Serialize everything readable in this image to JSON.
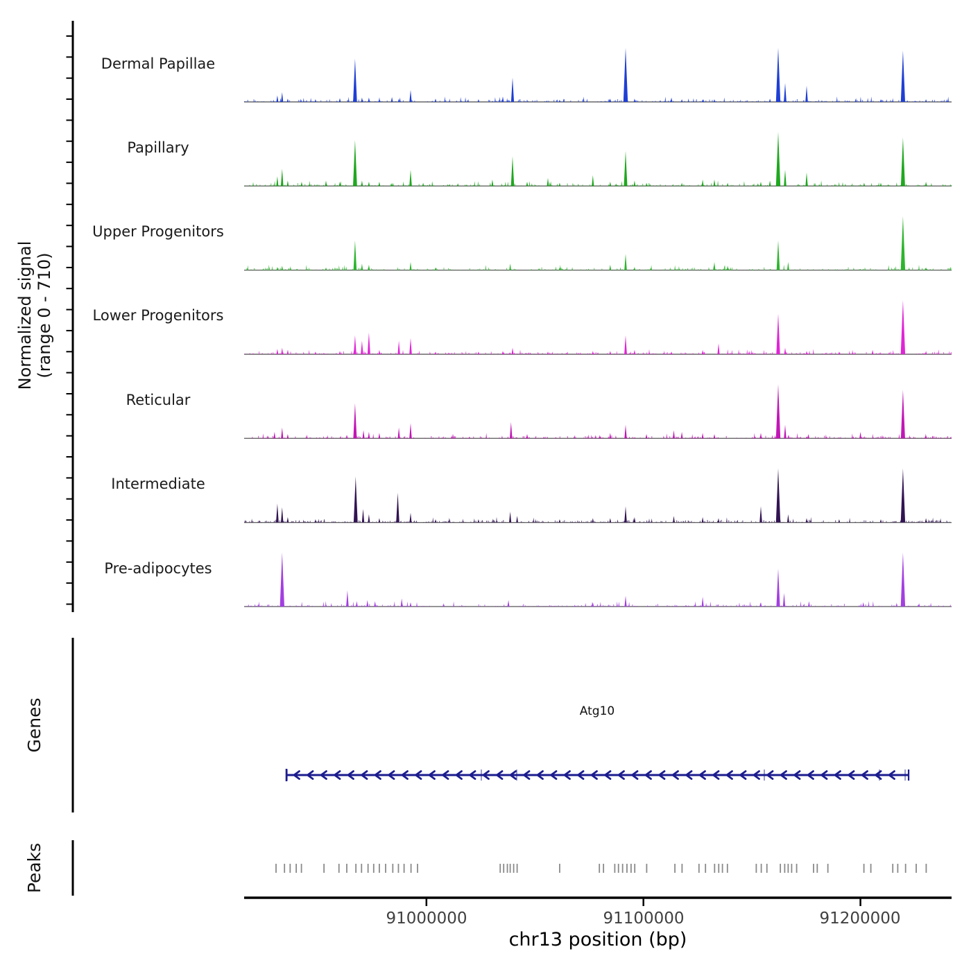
{
  "figure": {
    "background": "#ffffff",
    "y_axis": {
      "label_line1": "Normalized signal",
      "label_line2": "(range 0 - 710)",
      "range_min": 0,
      "range_max": 710
    },
    "x_axis": {
      "title": "chr13 position (bp)",
      "bp_min": 90916000,
      "bp_max": 91242000,
      "ticks": [
        {
          "bp": 91000000,
          "label": "91000000"
        },
        {
          "bp": 91100000,
          "label": "91100000"
        },
        {
          "bp": 91200000,
          "label": "91200000"
        }
      ]
    },
    "sections": {
      "genes_label": "Genes",
      "peaks_label": "Peaks"
    }
  },
  "chart_data": {
    "type": "area",
    "description": "Genome browser signal tracks over chr13, peaks as [position_bp, relative_height 0-1]",
    "signal_max": 710,
    "tracks": [
      {
        "name": "Dermal Papillae",
        "color": "#1f3fd4",
        "peaks": [
          [
            90931300,
            0.12
          ],
          [
            90933500,
            0.18
          ],
          [
            90936100,
            0.06
          ],
          [
            90948900,
            0.05
          ],
          [
            90960100,
            0.07
          ],
          [
            90967100,
            0.8
          ],
          [
            90970300,
            0.08
          ],
          [
            90973500,
            0.08
          ],
          [
            90978300,
            0.06
          ],
          [
            90984100,
            0.09
          ],
          [
            90987300,
            0.06
          ],
          [
            90992700,
            0.22
          ],
          [
            91004200,
            0.06
          ],
          [
            91024000,
            0.05
          ],
          [
            91035200,
            0.1
          ],
          [
            91039700,
            0.45
          ],
          [
            91061400,
            0.04
          ],
          [
            91084700,
            0.06
          ],
          [
            91091800,
            1.0
          ],
          [
            91095900,
            0.06
          ],
          [
            91112900,
            0.08
          ],
          [
            91117700,
            0.05
          ],
          [
            91127300,
            0.05
          ],
          [
            91132700,
            0.05
          ],
          [
            91158300,
            0.06
          ],
          [
            91162100,
            1.0
          ],
          [
            91165300,
            0.35
          ],
          [
            91175200,
            0.3
          ],
          [
            91209400,
            0.05
          ],
          [
            91219600,
            0.95
          ],
          [
            91230200,
            0.05
          ]
        ]
      },
      {
        "name": "Papillary",
        "color": "#1fa81f",
        "peaks": [
          [
            90931300,
            0.18
          ],
          [
            90933500,
            0.32
          ],
          [
            90936100,
            0.1
          ],
          [
            90942500,
            0.08
          ],
          [
            90953700,
            0.1
          ],
          [
            90960100,
            0.08
          ],
          [
            90967100,
            0.85
          ],
          [
            90970300,
            0.1
          ],
          [
            90973500,
            0.08
          ],
          [
            90978300,
            0.08
          ],
          [
            90984100,
            0.06
          ],
          [
            90992700,
            0.3
          ],
          [
            90998500,
            0.06
          ],
          [
            91014500,
            0.05
          ],
          [
            91030400,
            0.12
          ],
          [
            91039700,
            0.55
          ],
          [
            91046400,
            0.08
          ],
          [
            91056000,
            0.15
          ],
          [
            91061400,
            0.06
          ],
          [
            91076700,
            0.2
          ],
          [
            91084700,
            0.08
          ],
          [
            91091800,
            0.65
          ],
          [
            91095900,
            0.1
          ],
          [
            91101400,
            0.06
          ],
          [
            91117700,
            0.06
          ],
          [
            91127300,
            0.12
          ],
          [
            91132700,
            0.12
          ],
          [
            91138800,
            0.06
          ],
          [
            91154100,
            0.08
          ],
          [
            91158300,
            0.1
          ],
          [
            91162100,
            1.0
          ],
          [
            91165300,
            0.3
          ],
          [
            91175200,
            0.25
          ],
          [
            91201700,
            0.06
          ],
          [
            91209400,
            0.06
          ],
          [
            91219600,
            0.9
          ],
          [
            91230200,
            0.08
          ]
        ]
      },
      {
        "name": "Upper Progenitors",
        "color": "#2db52d",
        "peaks": [
          [
            90931300,
            0.06
          ],
          [
            90933500,
            0.08
          ],
          [
            90953700,
            0.05
          ],
          [
            90967100,
            0.55
          ],
          [
            90970300,
            0.12
          ],
          [
            90973500,
            0.1
          ],
          [
            90992700,
            0.15
          ],
          [
            91004200,
            0.05
          ],
          [
            91038600,
            0.12
          ],
          [
            91061400,
            0.05
          ],
          [
            91084700,
            0.1
          ],
          [
            91091800,
            0.3
          ],
          [
            91095900,
            0.06
          ],
          [
            91132700,
            0.15
          ],
          [
            91138800,
            0.08
          ],
          [
            91162100,
            0.55
          ],
          [
            91166700,
            0.15
          ],
          [
            91219600,
            1.0
          ],
          [
            91230200,
            0.05
          ]
        ]
      },
      {
        "name": "Lower Progenitors",
        "color": "#e024d6",
        "peaks": [
          [
            90931300,
            0.1
          ],
          [
            90933500,
            0.12
          ],
          [
            90936100,
            0.08
          ],
          [
            90948900,
            0.05
          ],
          [
            90960100,
            0.06
          ],
          [
            90967100,
            0.35
          ],
          [
            90970300,
            0.25
          ],
          [
            90973500,
            0.4
          ],
          [
            90978300,
            0.08
          ],
          [
            90987300,
            0.25
          ],
          [
            90992700,
            0.3
          ],
          [
            91004200,
            0.05
          ],
          [
            91024000,
            0.05
          ],
          [
            91035200,
            0.06
          ],
          [
            91039700,
            0.12
          ],
          [
            91056000,
            0.05
          ],
          [
            91076700,
            0.06
          ],
          [
            91084700,
            0.06
          ],
          [
            91091800,
            0.35
          ],
          [
            91095900,
            0.08
          ],
          [
            91112900,
            0.05
          ],
          [
            91127300,
            0.08
          ],
          [
            91134600,
            0.2
          ],
          [
            91148700,
            0.06
          ],
          [
            91162100,
            0.75
          ],
          [
            91165300,
            0.12
          ],
          [
            91175200,
            0.06
          ],
          [
            91190200,
            0.05
          ],
          [
            91205600,
            0.08
          ],
          [
            91219600,
            1.0
          ],
          [
            91230200,
            0.06
          ]
        ]
      },
      {
        "name": "Reticular",
        "color": "#c216b6",
        "peaks": [
          [
            90930000,
            0.12
          ],
          [
            90933500,
            0.2
          ],
          [
            90936100,
            0.08
          ],
          [
            90967100,
            0.65
          ],
          [
            90971000,
            0.15
          ],
          [
            90973500,
            0.12
          ],
          [
            90978300,
            0.1
          ],
          [
            90987300,
            0.2
          ],
          [
            90992700,
            0.28
          ],
          [
            91039000,
            0.3
          ],
          [
            91046400,
            0.08
          ],
          [
            91079900,
            0.06
          ],
          [
            91084700,
            0.1
          ],
          [
            91091800,
            0.25
          ],
          [
            91101400,
            0.08
          ],
          [
            91114000,
            0.15
          ],
          [
            91117700,
            0.12
          ],
          [
            91127300,
            0.1
          ],
          [
            91132700,
            0.08
          ],
          [
            91154100,
            0.1
          ],
          [
            91162100,
            1.0
          ],
          [
            91165300,
            0.25
          ],
          [
            91176000,
            0.08
          ],
          [
            91200000,
            0.12
          ],
          [
            91219600,
            0.9
          ],
          [
            91230200,
            0.06
          ]
        ]
      },
      {
        "name": "Intermediate",
        "color": "#321452",
        "peaks": [
          [
            90931300,
            0.35
          ],
          [
            90933500,
            0.28
          ],
          [
            90936100,
            0.1
          ],
          [
            90948900,
            0.06
          ],
          [
            90967400,
            0.85
          ],
          [
            90970800,
            0.25
          ],
          [
            90973500,
            0.15
          ],
          [
            90978300,
            0.08
          ],
          [
            90986800,
            0.55
          ],
          [
            90992700,
            0.18
          ],
          [
            91004200,
            0.06
          ],
          [
            91024000,
            0.06
          ],
          [
            91038600,
            0.2
          ],
          [
            91041800,
            0.12
          ],
          [
            91061400,
            0.06
          ],
          [
            91076700,
            0.08
          ],
          [
            91084700,
            0.08
          ],
          [
            91091800,
            0.3
          ],
          [
            91095900,
            0.1
          ],
          [
            91114000,
            0.12
          ],
          [
            91127300,
            0.1
          ],
          [
            91134600,
            0.08
          ],
          [
            91154100,
            0.3
          ],
          [
            91162100,
            1.0
          ],
          [
            91166700,
            0.15
          ],
          [
            91175200,
            0.08
          ],
          [
            91190200,
            0.06
          ],
          [
            91209400,
            0.06
          ],
          [
            91219600,
            1.0
          ],
          [
            91230200,
            0.08
          ]
        ]
      },
      {
        "name": "Pre-adipocytes",
        "color": "#a33fe1",
        "peaks": [
          [
            90933500,
            1.0
          ],
          [
            90963600,
            0.3
          ],
          [
            90967900,
            0.1
          ],
          [
            90972800,
            0.12
          ],
          [
            90976300,
            0.1
          ],
          [
            90988600,
            0.15
          ],
          [
            90992700,
            0.08
          ],
          [
            91037800,
            0.12
          ],
          [
            91076700,
            0.08
          ],
          [
            91091800,
            0.2
          ],
          [
            91127300,
            0.18
          ],
          [
            91154100,
            0.08
          ],
          [
            91162100,
            0.7
          ],
          [
            91164800,
            0.25
          ],
          [
            91176300,
            0.1
          ],
          [
            91201300,
            0.08
          ],
          [
            91219600,
            1.0
          ],
          [
            91227000,
            0.06
          ]
        ]
      }
    ],
    "gene": {
      "name": "Atg10",
      "strand": "-",
      "start": 90935500,
      "end": 91222200,
      "color": "#1c1c8f",
      "exon_marks": [
        90935800,
        91025300,
        91041600,
        91155700,
        91208750,
        91220600
      ]
    },
    "peaks_track": {
      "color": "#8a8a8a",
      "positions": [
        90930700,
        90934600,
        90937200,
        90940000,
        90942400,
        90952800,
        90959700,
        90963300,
        90967500,
        90970100,
        90973100,
        90975700,
        90978300,
        90981200,
        90984500,
        90987100,
        90989700,
        90992900,
        90995900,
        91034000,
        91035600,
        91037300,
        91038600,
        91040200,
        91041800,
        91061400,
        91079700,
        91081600,
        91086800,
        91088500,
        91090400,
        91092400,
        91094300,
        91096000,
        91101500,
        91114500,
        91117800,
        91125600,
        91128600,
        91132800,
        91134700,
        91136400,
        91138700,
        91152000,
        91154300,
        91156900,
        91163100,
        91165100,
        91166700,
        91168300,
        91170600,
        91178400,
        91180100,
        91185000,
        91201600,
        91204800,
        91214900,
        91217200,
        91220800,
        91225700,
        91230300
      ]
    }
  }
}
